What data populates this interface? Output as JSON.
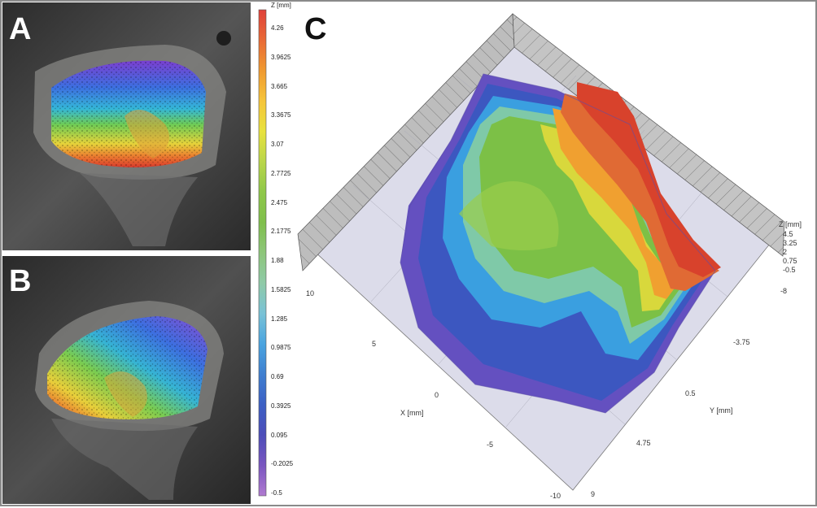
{
  "panels": {
    "a": {
      "label": "A"
    },
    "b": {
      "label": "B"
    },
    "c": {
      "label": "C"
    }
  },
  "colorbar": {
    "title": "Z [mm]",
    "ticks": [
      "4.26",
      "3.9625",
      "3.665",
      "3.3675",
      "3.07",
      "2.7725",
      "2.475",
      "2.1775",
      "1.88",
      "1.5825",
      "1.285",
      "0.9875",
      "0.69",
      "0.3925",
      "0.095",
      "-0.2025",
      "-0.5"
    ],
    "colors": [
      "#e0413a",
      "#e96a36",
      "#f09a30",
      "#f6c53a",
      "#e8e23e",
      "#b9d64a",
      "#8fc84a",
      "#7fbf4c",
      "#8dc67a",
      "#8fcaa8",
      "#79c2d6",
      "#4aa4e0",
      "#3f7fd0",
      "#3c5fc4",
      "#4c4db9",
      "#7a56c0",
      "#b07ad0"
    ]
  },
  "plot3d": {
    "x_axis_label": "X [mm]",
    "x_ticks": [
      "10",
      "5",
      "0",
      "-5",
      "-10"
    ],
    "y_axis_label": "Y [mm]",
    "y_ticks": [
      "-8",
      "-3.75",
      "0.5",
      "4.75",
      "9"
    ],
    "z_axis_label": "Z [mm]",
    "z_ticks": [
      "4.5",
      "3.25",
      "2",
      "0.75",
      "-0.5"
    ]
  }
}
